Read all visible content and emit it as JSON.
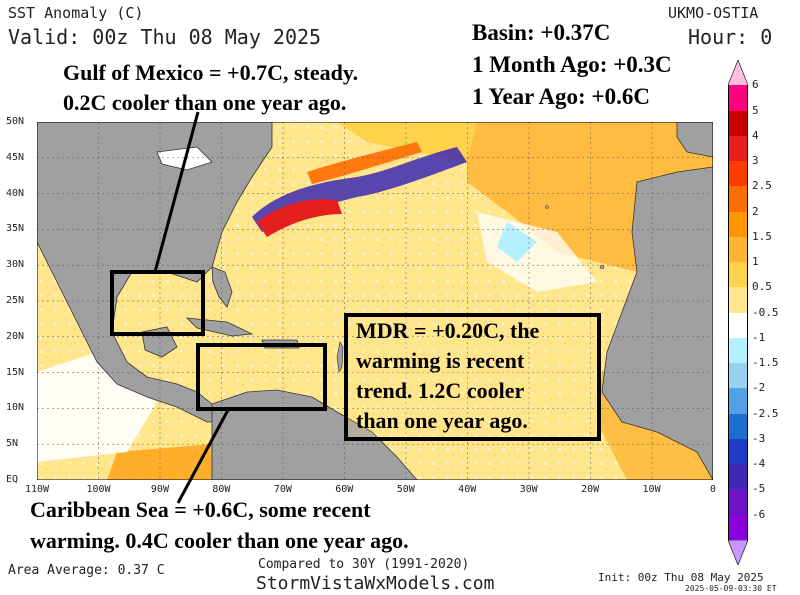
{
  "header": {
    "title": "SST Anomaly (C)",
    "valid": "Valid: 00z Thu 08 May 2025",
    "model": "UKMO-OSTIA",
    "hour": "Hour: 0"
  },
  "stats": {
    "basin": "Basin: +0.37C",
    "month_ago": "1 Month Ago: +0.3C",
    "year_ago": "1 Year Ago: +0.6C"
  },
  "annotations": {
    "gulf_line1": "Gulf of Mexico = +0.7C, steady.",
    "gulf_line2": "0.2C cooler than one year ago.",
    "mdr_line1": "MDR = +0.20C, the",
    "mdr_line2": "warming is recent",
    "mdr_line3": "trend. 1.2C cooler",
    "mdr_line4": "than one year ago.",
    "carib_line1": "Caribbean Sea = +0.6C, some recent",
    "carib_line2": "warming. 0.4C cooler than one year ago."
  },
  "axes": {
    "lat_labels": [
      "50N",
      "45N",
      "40N",
      "35N",
      "30N",
      "25N",
      "20N",
      "15N",
      "10N",
      "5N",
      "EQ"
    ],
    "lon_labels": [
      "110W",
      "100W",
      "90W",
      "80W",
      "70W",
      "60W",
      "50W",
      "40W",
      "30W",
      "20W",
      "10W",
      "0"
    ]
  },
  "colorbar": {
    "labels": [
      "6",
      "5",
      "4",
      "3",
      "2.5",
      "2",
      "1.5",
      "1",
      "0.5",
      "-0.5",
      "-1",
      "-1.5",
      "-2",
      "-2.5",
      "-3",
      "-4",
      "-5",
      "-6"
    ],
    "colors": [
      "#ff0080",
      "#c80000",
      "#e61e1e",
      "#ff3c00",
      "#ff6e00",
      "#ff9600",
      "#ffb432",
      "#ffd24b",
      "#ffe68c",
      "#ffffff",
      "#b4f0ff",
      "#96d2f0",
      "#50a0e6",
      "#1e6ed2",
      "#1e3cc8",
      "#3c28b4",
      "#6e14c8",
      "#8c00dc"
    ]
  },
  "footer": {
    "area_average": "Area Average: 0.37 C",
    "compared": "Compared to 30Y (1991-2020)",
    "site": "StormVistaWxModels.com",
    "init": "Init: 00z Thu 08 May 2025",
    "timestamp": "2025-05-09-03:30 ET"
  }
}
